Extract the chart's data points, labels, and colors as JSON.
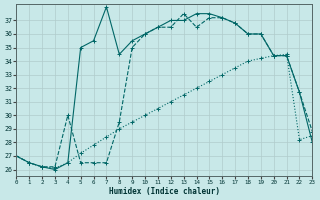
{
  "xlabel": "Humidex (Indice chaleur)",
  "background_color": "#c8e8e8",
  "grid_color": "#b0cccc",
  "line_color": "#006666",
  "xlim": [
    0,
    23
  ],
  "ylim": [
    25.5,
    38.2
  ],
  "yticks": [
    26,
    27,
    28,
    29,
    30,
    31,
    32,
    33,
    34,
    35,
    36,
    37
  ],
  "xticks": [
    0,
    1,
    2,
    3,
    4,
    5,
    6,
    7,
    8,
    9,
    10,
    11,
    12,
    13,
    14,
    15,
    16,
    17,
    18,
    19,
    20,
    21,
    22,
    23
  ],
  "series1_x": [
    0,
    1,
    2,
    3,
    4,
    5,
    6,
    7,
    8,
    9,
    10,
    11,
    12,
    13,
    14,
    15,
    16,
    17,
    18,
    19,
    20,
    21,
    22,
    23
  ],
  "series1_y": [
    27.0,
    26.5,
    26.2,
    26.1,
    26.5,
    27.2,
    27.8,
    28.4,
    29.0,
    29.5,
    30.0,
    30.5,
    31.0,
    31.5,
    32.0,
    32.5,
    33.0,
    33.5,
    34.0,
    34.2,
    34.4,
    34.5,
    28.2,
    28.5
  ],
  "series2_x": [
    0,
    1,
    2,
    3,
    4,
    5,
    6,
    7,
    8,
    9,
    10,
    11,
    12,
    13,
    14,
    15,
    16,
    17,
    18,
    19,
    20,
    21,
    22,
    23
  ],
  "series2_y": [
    27.0,
    26.5,
    26.2,
    26.2,
    30.0,
    26.5,
    26.5,
    26.5,
    29.5,
    35.0,
    36.0,
    36.5,
    36.5,
    37.5,
    36.5,
    37.2,
    37.2,
    36.8,
    36.0,
    36.0,
    34.4,
    34.4,
    31.7,
    28.8
  ],
  "series3_x": [
    0,
    1,
    2,
    3,
    4,
    5,
    6,
    7,
    8,
    9,
    10,
    11,
    12,
    13,
    14,
    15,
    16,
    17,
    18,
    19,
    20,
    21,
    22,
    23
  ],
  "series3_y": [
    27.0,
    26.5,
    26.2,
    26.0,
    26.5,
    35.0,
    35.5,
    38.0,
    34.5,
    35.5,
    36.0,
    36.5,
    37.0,
    37.0,
    37.5,
    37.5,
    37.2,
    36.8,
    36.0,
    36.0,
    34.4,
    34.4,
    31.7,
    28.0
  ]
}
